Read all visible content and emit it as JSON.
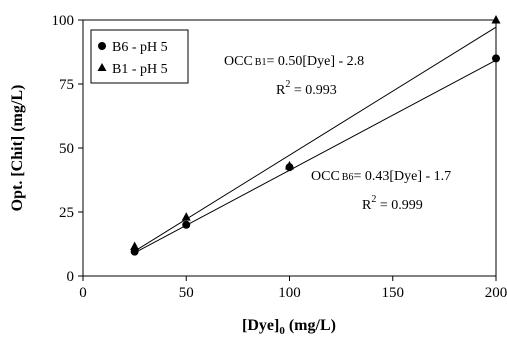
{
  "chart_data": {
    "type": "scatter",
    "xlabel": {
      "main": "[Dye]",
      "sub": "0",
      "unit": " (mg/L)"
    },
    "ylabel": "Opt. [Chit] (mg/L)",
    "xlim": [
      0,
      200
    ],
    "ylim": [
      0,
      100
    ],
    "xticks": [
      0,
      50,
      100,
      150,
      200
    ],
    "yticks": [
      0,
      25,
      50,
      75,
      100
    ],
    "grid": false,
    "legend_position": "top-left",
    "series": [
      {
        "name": "B6 - pH 5",
        "marker": "circle",
        "x": [
          25,
          50,
          100,
          200
        ],
        "y": [
          9.5,
          20,
          42.5,
          85
        ],
        "fit": {
          "slope": 0.43,
          "intercept": -1.7
        }
      },
      {
        "name": "B1 - pH 5",
        "marker": "triangle",
        "x": [
          25,
          50,
          100,
          200
        ],
        "y": [
          11.5,
          23,
          43,
          100
        ],
        "fit": {
          "slope": 0.5,
          "intercept": -2.8
        }
      }
    ],
    "annotations": [
      {
        "equation": {
          "prefix": "OCC",
          "sub": "B1",
          "text": "= 0.50[Dye] - 2.8"
        },
        "r2": {
          "prefix": "R",
          "sup": "2",
          "text": " = 0.993"
        }
      },
      {
        "equation": {
          "prefix": "OCC",
          "sub": "B6",
          "text": "= 0.43[Dye] - 1.7"
        },
        "r2": {
          "prefix": "R",
          "sup": "2",
          "text": " = 0.999"
        }
      }
    ]
  }
}
